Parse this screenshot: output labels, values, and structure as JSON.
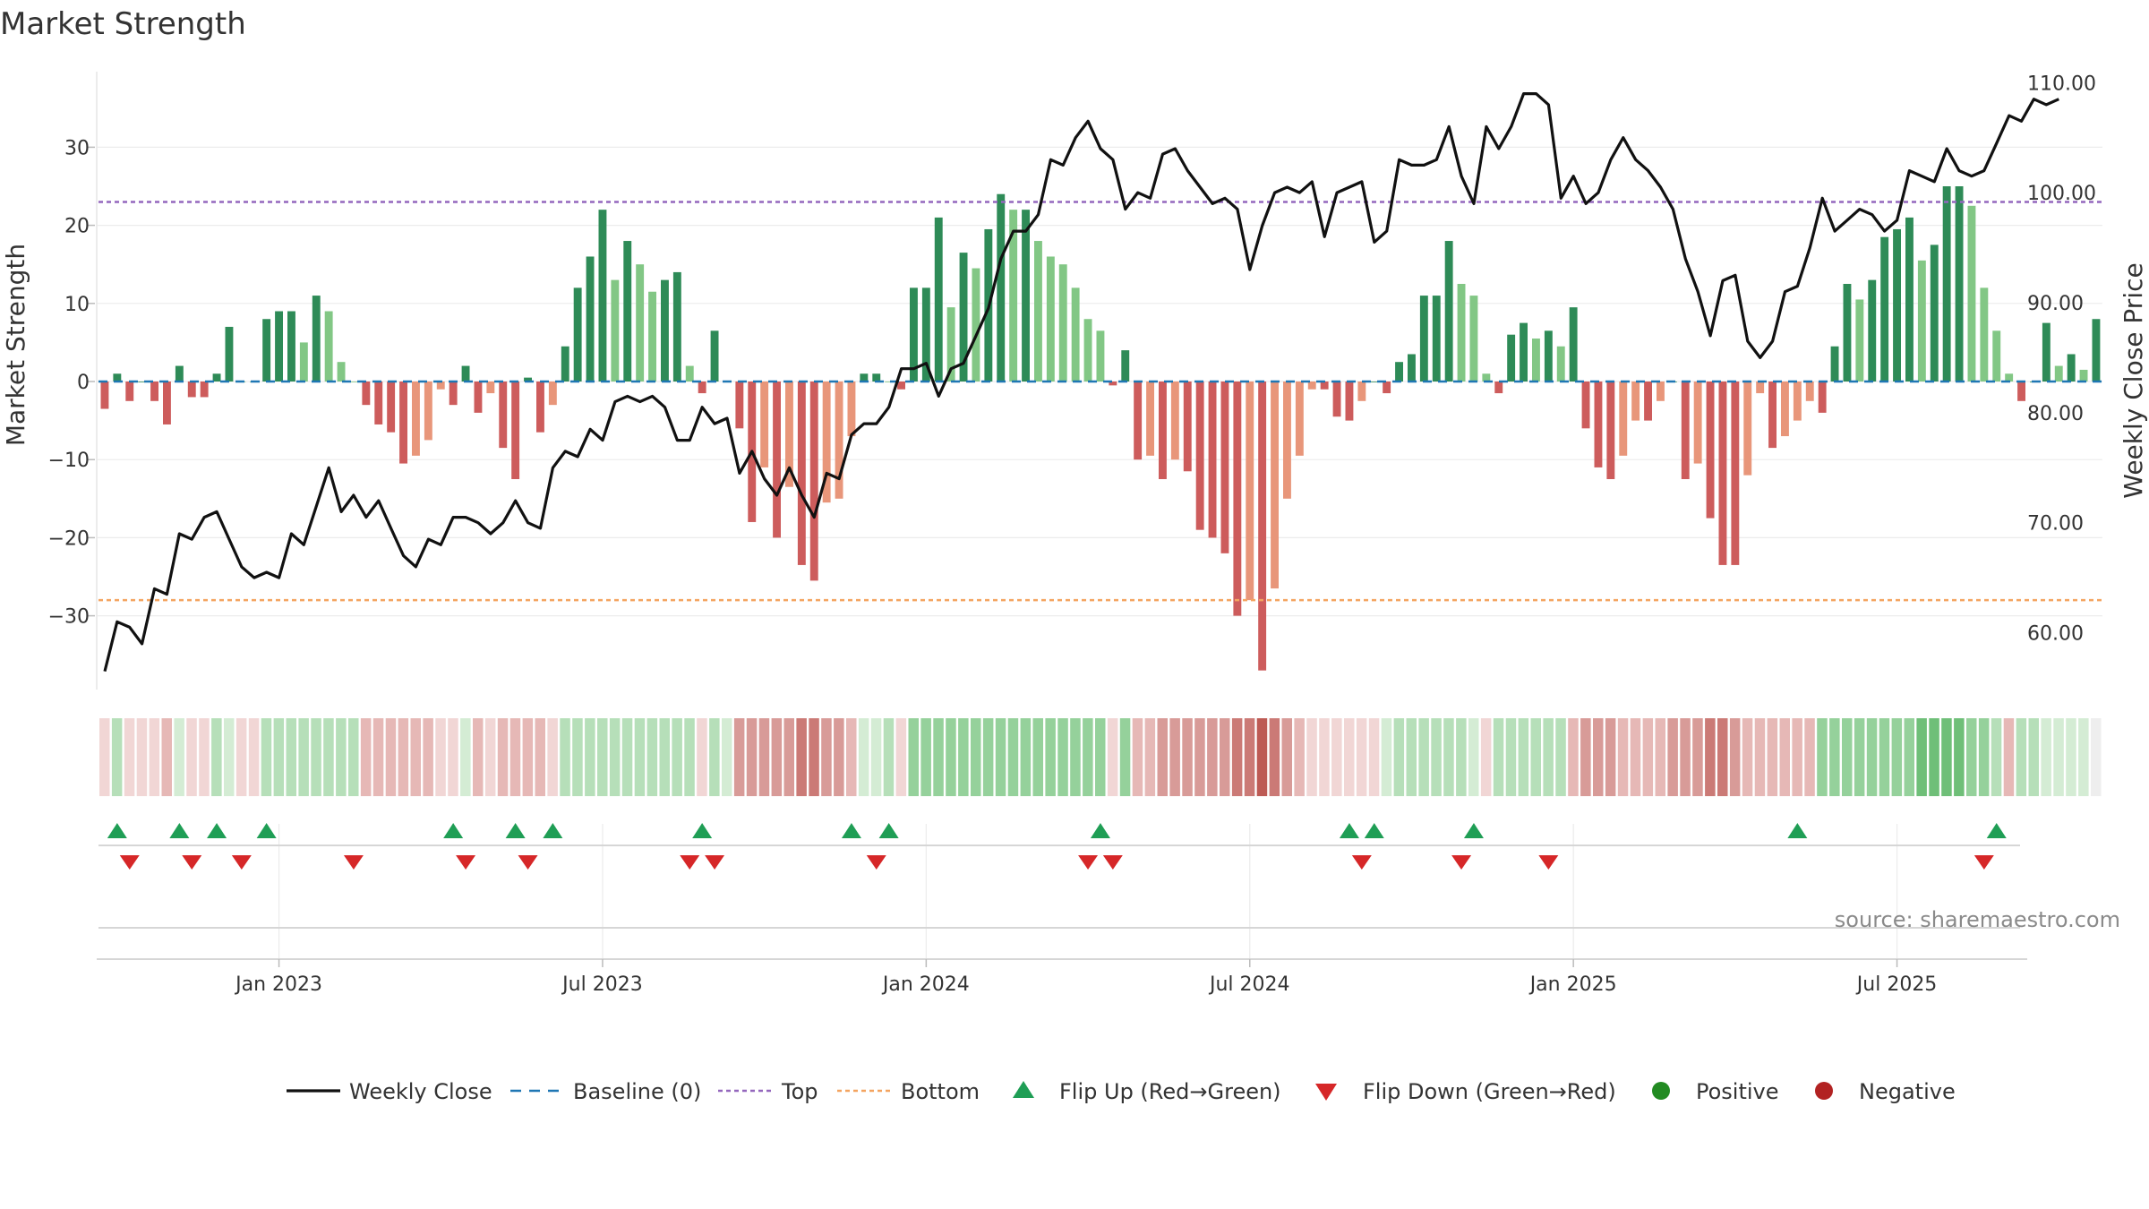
{
  "chart_data": {
    "type": "bar",
    "title": "Market Strength",
    "ylabel": "Market Strength",
    "y2label": "Weekly Close Price",
    "ylim": [
      -37.5,
      39
    ],
    "y2lim": [
      55,
      111
    ],
    "yticks": [
      30,
      20,
      10,
      0,
      -10,
      -20,
      -30
    ],
    "ytick_labels": [
      "30",
      "20",
      "10",
      "0",
      "−10",
      "−20",
      "−30"
    ],
    "y2ticks": [
      110,
      100,
      90,
      80,
      70,
      60
    ],
    "y2tick_labels": [
      "110.00",
      "100.00",
      "90.00",
      "80.00",
      "70.00",
      "60.00"
    ],
    "top_line": 23,
    "bottom_line": -28,
    "baseline": 0,
    "x_tick_labels": [
      "Jan 2023",
      "Jul 2023",
      "Jan 2024",
      "Jul 2024",
      "Jan 2025",
      "Jul 2025"
    ],
    "x_tick_index": [
      14.5,
      40.5,
      66.5,
      92.5,
      118.5,
      144.5
    ],
    "strength": [
      -3.5,
      1,
      -2.5,
      0,
      -2.5,
      -5.5,
      2,
      -2,
      -2,
      1,
      7,
      0,
      0,
      8,
      9,
      9,
      5,
      11,
      9,
      2.5,
      0,
      -3,
      -5.5,
      -6.5,
      -10.5,
      -9.5,
      -7.5,
      -1,
      -3,
      2,
      -4,
      -1.5,
      -8.5,
      -12.5,
      0.5,
      -6.5,
      -3,
      4.5,
      12,
      16,
      22,
      13,
      18,
      15,
      11.5,
      13,
      14,
      2,
      -1.5,
      6.5,
      0,
      -6,
      -18,
      -11,
      -20,
      -13.5,
      -23.5,
      -25.5,
      -15.5,
      -15,
      -7,
      1,
      1,
      0,
      -1,
      12,
      12,
      21,
      9.5,
      16.5,
      14.5,
      19.5,
      24,
      22,
      22,
      18,
      16,
      15,
      12,
      8,
      6.5,
      -0.5,
      4,
      -10,
      -9.5,
      -12.5,
      -10,
      -11.5,
      -19,
      -20,
      -22,
      -30,
      -28,
      -37,
      -26.5,
      -15,
      -9.5,
      -1,
      -1,
      -4.5,
      -5,
      -2.5,
      0,
      -1.5,
      2.5,
      3.5,
      11,
      11,
      18,
      12.5,
      11,
      1,
      -1.5,
      6,
      7.5,
      5.5,
      6.5,
      4.5,
      9.5,
      -6,
      -11,
      -12.5,
      -9.5,
      -5,
      -5,
      -2.5,
      0,
      -12.5,
      -10.5,
      -17.5,
      -23.5,
      -23.5,
      -12,
      -1.5,
      -8.5,
      -7,
      -5,
      -2.5,
      -4,
      4.5,
      12.5,
      10.5,
      13,
      18.5,
      19.5,
      21,
      15.5,
      17.5,
      25,
      25,
      22.5,
      12,
      6.5,
      1,
      -2.5,
      0,
      7.5,
      2,
      3.5,
      1.5,
      8
    ],
    "close": [
      56.5,
      61,
      60.5,
      59,
      64,
      63.5,
      69,
      68.5,
      70.5,
      71,
      68.5,
      66,
      65,
      65.5,
      65,
      69,
      68,
      71.5,
      75,
      71,
      72.5,
      70.5,
      72,
      69.5,
      67,
      66,
      68.5,
      68,
      70.5,
      70.5,
      70,
      69,
      70,
      72,
      70,
      69.5,
      75,
      76.5,
      76,
      78.5,
      77.5,
      81,
      81.5,
      81,
      81.5,
      80.5,
      77.5,
      77.5,
      80.5,
      79,
      79.5,
      74.5,
      76.5,
      74,
      72.5,
      75,
      72.5,
      70.5,
      74.5,
      74,
      78,
      79,
      79,
      80.5,
      84,
      84,
      84.5,
      81.5,
      84,
      84.5,
      87,
      89.5,
      94,
      96.5,
      96.5,
      98,
      103,
      102.5,
      105,
      106.5,
      104,
      103,
      98.5,
      100,
      99.5,
      103.5,
      104,
      102,
      100.5,
      99,
      99.5,
      98.5,
      93,
      97,
      100,
      100.5,
      100,
      101,
      96,
      100,
      100.5,
      101,
      95.5,
      96.5,
      103,
      102.5,
      102.5,
      103,
      106,
      101.5,
      99,
      106,
      104,
      106,
      109,
      109,
      108,
      99.5,
      101.5,
      99,
      100,
      103,
      105,
      103,
      102,
      100.5,
      98.5,
      94,
      91,
      87,
      92,
      92.5,
      86.5,
      85,
      86.5,
      91,
      91.5,
      95,
      99.5,
      96.5,
      97.5,
      98.5,
      98,
      96.5,
      97.5,
      102,
      101.5,
      101,
      104,
      102,
      101.5,
      102,
      104.5,
      107,
      106.5,
      108.5,
      108,
      108.5
    ],
    "color_band": [
      "r1",
      "g2",
      "r1",
      "r1",
      "r1",
      "r2",
      "g1",
      "r1",
      "r1",
      "g2",
      "g1",
      "r1",
      "r1",
      "g2",
      "g2",
      "g2",
      "g2",
      "g2",
      "g2",
      "g2",
      "g2",
      "r2",
      "r2",
      "r2",
      "r2",
      "r2",
      "r2",
      "r1",
      "r1",
      "g1",
      "r2",
      "r1",
      "r2",
      "r2",
      "r2",
      "r2",
      "r1",
      "g2",
      "g2",
      "g2",
      "g2",
      "g2",
      "g2",
      "g2",
      "g2",
      "g2",
      "g2",
      "g2",
      "r1",
      "g2",
      "g1",
      "r3",
      "r3",
      "r3",
      "r3",
      "r3",
      "r4",
      "r4",
      "r3",
      "r3",
      "r2",
      "g1",
      "g1",
      "g2",
      "r1",
      "g3",
      "g3",
      "g3",
      "g3",
      "g3",
      "g3",
      "g3",
      "g3",
      "g3",
      "g3",
      "g3",
      "g3",
      "g3",
      "g3",
      "g3",
      "g3",
      "r1",
      "g3",
      "r2",
      "r2",
      "r3",
      "r3",
      "r3",
      "r3",
      "r3",
      "r3",
      "r4",
      "r4",
      "r5",
      "r4",
      "r3",
      "r2",
      "r1",
      "r1",
      "r1",
      "r1",
      "r1",
      "r1",
      "g1",
      "g2",
      "g2",
      "g2",
      "g2",
      "g2",
      "g2",
      "g1",
      "r1",
      "g2",
      "g2",
      "g2",
      "g2",
      "g2",
      "g2",
      "r2",
      "r3",
      "r3",
      "r3",
      "r2",
      "r2",
      "r2",
      "r2",
      "r3",
      "r3",
      "r3",
      "r4",
      "r4",
      "r3",
      "r2",
      "r2",
      "r2",
      "r2",
      "r2",
      "r2",
      "g3",
      "g3",
      "g3",
      "g3",
      "g3",
      "g3",
      "g3",
      "g3",
      "g4",
      "g4",
      "g4",
      "g4",
      "g3",
      "g3",
      "g2",
      "r2",
      "g2",
      "g2",
      "g1",
      "g1",
      "g1",
      "g1"
    ],
    "flip_up_index": [
      1,
      6,
      9,
      13,
      28,
      33,
      36,
      48,
      60,
      63,
      80,
      100,
      102,
      110,
      136,
      152
    ],
    "flip_down_index": [
      2,
      7,
      11,
      20,
      29,
      34,
      47,
      49,
      62,
      79,
      81,
      101,
      109,
      116,
      151
    ],
    "legend": [
      "Weekly Close",
      "Baseline (0)",
      "Top",
      "Bottom",
      "Flip Up (Red→Green)",
      "Flip Down (Green→Red)",
      "Positive",
      "Negative"
    ],
    "colors": {
      "pos_dark": "#2e8b57",
      "pos_light": "#82c785",
      "neg_dark": "#cd5c5c",
      "neg_light": "#e8967a",
      "close_line": "#111111",
      "baseline": "#1f77b4",
      "top": "#9467bd",
      "bottom": "#f4a460",
      "flip_up": "#1f9e55",
      "flip_down": "#d62728",
      "positive_dot": "#228b22",
      "negative_dot": "#b22222"
    }
  },
  "source_text": "source: sharemaestro.com"
}
